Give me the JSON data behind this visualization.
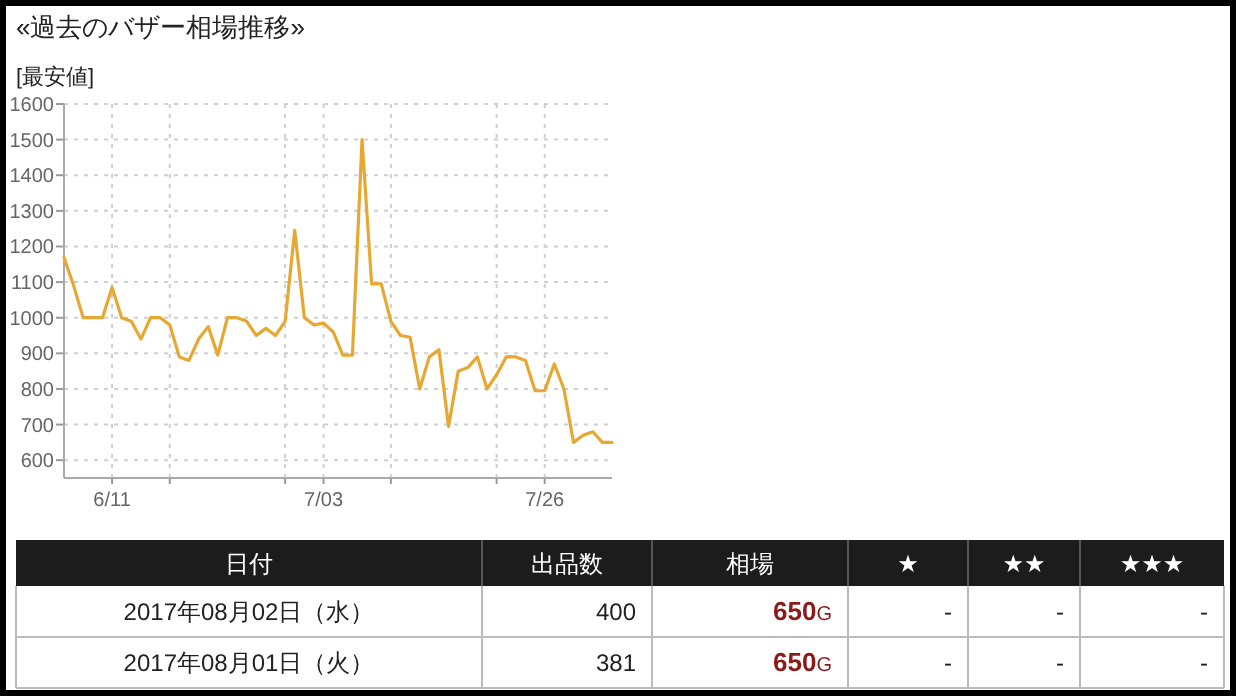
{
  "chart_data": [
    {
      "type": "line",
      "title": "«過去のバザー相場推移»",
      "ylabel": "[最安値]",
      "color": "#e6a832",
      "grid": true,
      "marker": "none",
      "line_style": "solid",
      "x": [
        "--06-06",
        "--06-07",
        "--06-08",
        "--06-09",
        "--06-10",
        "--06-11",
        "--06-12",
        "--06-13",
        "--06-14",
        "--06-15",
        "--06-16",
        "--06-17",
        "--06-18",
        "--06-19",
        "--06-20",
        "--06-21",
        "--06-22",
        "--06-23",
        "--06-24",
        "--06-25",
        "--06-26",
        "--06-27",
        "--06-28",
        "--06-29",
        "--06-30",
        "--07-01",
        "--07-02",
        "--07-03",
        "--07-04",
        "--07-05",
        "--07-06",
        "--07-07",
        "--07-08",
        "--07-09",
        "--07-10",
        "--07-11",
        "--07-12",
        "--07-13",
        "--07-14",
        "--07-15",
        "--07-16",
        "--07-17",
        "--07-18",
        "--07-19",
        "--07-20",
        "--07-21",
        "--07-22",
        "--07-23",
        "--07-24",
        "--07-25",
        "--07-26",
        "--07-27",
        "--07-28",
        "--07-29",
        "--07-30",
        "--07-31",
        "--08-01",
        "--08-02"
      ],
      "values": [
        1170,
        1090,
        1000,
        1000,
        1000,
        1085,
        1000,
        990,
        940,
        1000,
        1000,
        980,
        890,
        880,
        940,
        975,
        895,
        1000,
        1000,
        990,
        950,
        970,
        950,
        990,
        1245,
        1000,
        980,
        985,
        960,
        895,
        895,
        1500,
        1095,
        1095,
        990,
        950,
        945,
        800,
        890,
        910,
        695,
        850,
        860,
        890,
        800,
        840,
        890,
        890,
        880,
        795,
        795,
        870,
        800,
        650,
        670,
        680,
        650,
        650
      ],
      "xlim": [
        "--06-06",
        "--08-02"
      ],
      "xticks": [
        {
          "value": "--06-11",
          "label": "6/11"
        },
        {
          "value": "--06-17",
          "label": null
        },
        {
          "value": "--06-29",
          "label": null
        },
        {
          "value": "--07-03",
          "label": "7/03"
        },
        {
          "value": "--07-10",
          "label": null
        },
        {
          "value": "--07-21",
          "label": null
        },
        {
          "value": "--07-26",
          "label": "7/26"
        }
      ],
      "ylim": [
        550,
        1600
      ],
      "yticks": [
        600,
        700,
        800,
        900,
        1000,
        1100,
        1200,
        1300,
        1400,
        1500,
        1600
      ]
    },
    {
      "type": "other",
      "categories": [
        "日付",
        "出品数",
        "相場",
        "★",
        "★★",
        "★★★"
      ],
      "cell_labels": [
        [
          "2017年08月02日（水）",
          "400",
          "**650**G",
          "-",
          "-",
          "-"
        ],
        [
          "2017年08月01日（火）",
          "381",
          "**650**G",
          "-",
          "-",
          "-"
        ]
      ]
    }
  ]
}
